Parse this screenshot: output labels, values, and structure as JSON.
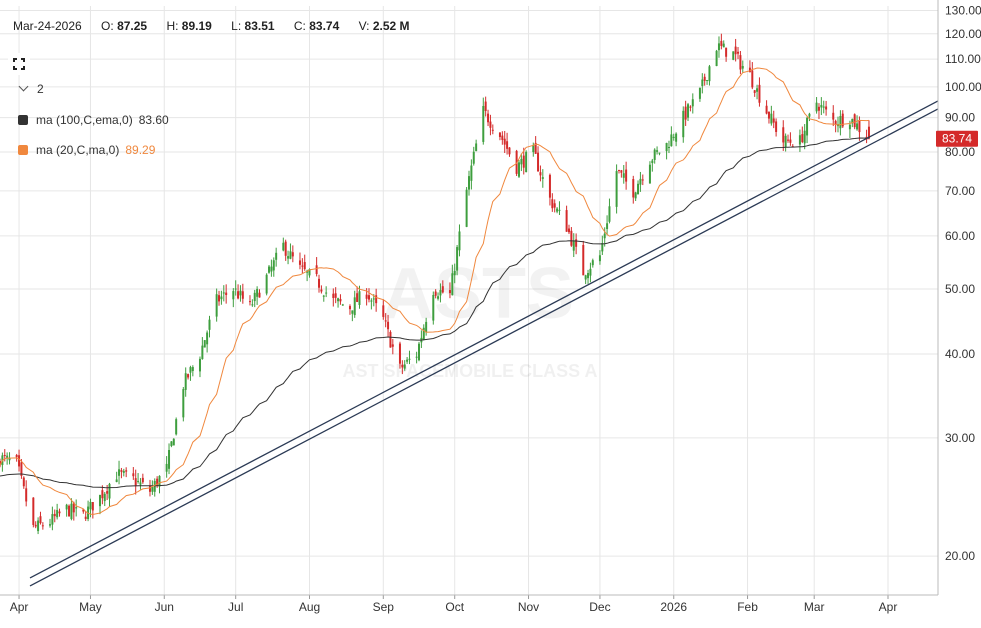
{
  "header": {
    "date": "Mar-24-2026",
    "open_label": "O:",
    "open": "87.25",
    "high_label": "H:",
    "high": "89.19",
    "low_label": "L:",
    "low": "83.51",
    "close_label": "C:",
    "close": "83.74",
    "volume_label": "V:",
    "volume": "2.52 M"
  },
  "studies": {
    "count": "2",
    "items": [
      {
        "label": "ma (100,C,ema,0)",
        "value": "83.60",
        "color": "#333333"
      },
      {
        "label": "ma (20,C,ma,0)",
        "value": "89.29",
        "color": "#f0883e"
      }
    ]
  },
  "watermark": {
    "symbol": "ASTS",
    "name": "AST SPACEMOBILE CLASS A"
  },
  "last_price": "83.74",
  "colors": {
    "up": "#3e9e3e",
    "down": "#d42a2a",
    "ma20": "#f0883e",
    "ma100": "#333333",
    "trendline": "#2b3a55",
    "price_badge": "#d42a2a"
  },
  "chart_data": {
    "type": "candlestick",
    "y_scale": "log",
    "ylim": [
      17.5,
      132
    ],
    "y_ticks": [
      "130.00",
      "120.00",
      "110.00",
      "100.00",
      "90.00",
      "80.00",
      "70.00",
      "60.00",
      "50.00",
      "40.00",
      "30.00",
      "20.00"
    ],
    "x_range": [
      "2025-03-24",
      "2026-04-22"
    ],
    "x_ticks": [
      {
        "label": "Apr",
        "date": "2025-04-01"
      },
      {
        "label": "May",
        "date": "2025-05-01"
      },
      {
        "label": "Jun",
        "date": "2025-06-01"
      },
      {
        "label": "Jul",
        "date": "2025-07-01"
      },
      {
        "label": "Aug",
        "date": "2025-08-01"
      },
      {
        "label": "Sep",
        "date": "2025-09-01"
      },
      {
        "label": "Oct",
        "date": "2025-10-01"
      },
      {
        "label": "Nov",
        "date": "2025-11-01"
      },
      {
        "label": "Dec",
        "date": "2025-12-01"
      },
      {
        "label": "2026",
        "date": "2026-01-01"
      },
      {
        "label": "Feb",
        "date": "2026-02-01"
      },
      {
        "label": "Mar",
        "date": "2026-03-01"
      },
      {
        "label": "Apr",
        "date": "2026-04-01"
      }
    ],
    "close_anchors": [
      [
        "2025-03-24",
        28.0
      ],
      [
        "2025-03-31",
        27.5
      ],
      [
        "2025-04-07",
        22.0
      ],
      [
        "2025-04-14",
        22.5
      ],
      [
        "2025-04-21",
        23.5
      ],
      [
        "2025-04-28",
        23.0
      ],
      [
        "2025-05-05",
        24.5
      ],
      [
        "2025-05-12",
        26.5
      ],
      [
        "2025-05-19",
        26.0
      ],
      [
        "2025-05-26",
        25.0
      ],
      [
        "2025-06-02",
        27.0
      ],
      [
        "2025-06-09",
        36.0
      ],
      [
        "2025-06-16",
        40.0
      ],
      [
        "2025-06-23",
        48.0
      ],
      [
        "2025-06-30",
        50.0
      ],
      [
        "2025-07-07",
        47.0
      ],
      [
        "2025-07-14",
        52.0
      ],
      [
        "2025-07-21",
        58.0
      ],
      [
        "2025-07-28",
        53.5
      ],
      [
        "2025-08-04",
        51.5
      ],
      [
        "2025-08-11",
        48.0
      ],
      [
        "2025-08-18",
        47.0
      ],
      [
        "2025-08-25",
        49.5
      ],
      [
        "2025-09-01",
        45.0
      ],
      [
        "2025-09-08",
        38.0
      ],
      [
        "2025-09-15",
        40.0
      ],
      [
        "2025-09-22",
        50.0
      ],
      [
        "2025-09-29",
        49.0
      ],
      [
        "2025-10-06",
        70.0
      ],
      [
        "2025-10-13",
        92.0
      ],
      [
        "2025-10-20",
        85.0
      ],
      [
        "2025-10-27",
        76.0
      ],
      [
        "2025-11-03",
        80.0
      ],
      [
        "2025-11-10",
        68.0
      ],
      [
        "2025-11-17",
        62.0
      ],
      [
        "2025-11-24",
        53.0
      ],
      [
        "2025-12-01",
        56.0
      ],
      [
        "2025-12-08",
        75.0
      ],
      [
        "2025-12-15",
        70.0
      ],
      [
        "2025-12-22",
        78.0
      ],
      [
        "2025-12-29",
        82.0
      ],
      [
        "2026-01-05",
        90.0
      ],
      [
        "2026-01-12",
        98.0
      ],
      [
        "2026-01-19",
        115.0
      ],
      [
        "2026-01-26",
        112.0
      ],
      [
        "2026-02-02",
        104.0
      ],
      [
        "2026-02-09",
        92.0
      ],
      [
        "2026-02-16",
        83.0
      ],
      [
        "2026-02-23",
        83.0
      ],
      [
        "2026-03-02",
        95.0
      ],
      [
        "2026-03-09",
        89.0
      ],
      [
        "2026-03-16",
        90.0
      ],
      [
        "2026-03-24",
        83.74
      ]
    ],
    "series": [
      {
        "name": "ma (20,C,ma,0)",
        "last": 89.29
      },
      {
        "name": "ma (100,C,ema,0)",
        "last": 83.6
      }
    ],
    "trendline": {
      "from": [
        "2025-03-24",
        18.3
      ],
      "to": [
        "2026-04-22",
        94.0
      ]
    },
    "last": {
      "date": "2026-03-24",
      "open": 87.25,
      "high": 89.19,
      "low": 83.51,
      "close": 83.74,
      "volume": "2.52 M"
    }
  }
}
